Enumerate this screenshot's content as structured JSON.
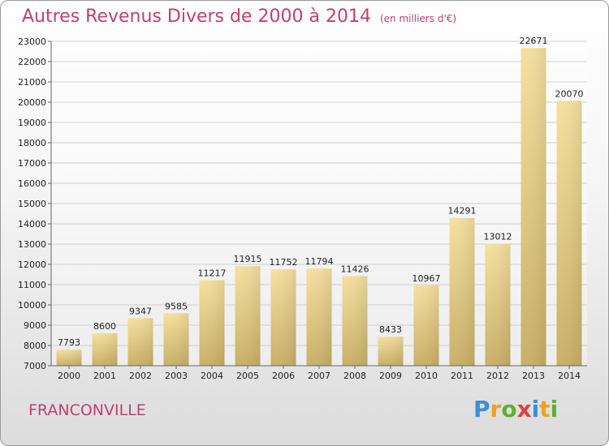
{
  "title": "Autres Revenus Divers de 2000 à 2014",
  "subtitle": "(en milliers d'€)",
  "location": "FRANCONVILLE",
  "logo": {
    "text": "Proxiti",
    "letters": [
      {
        "ch": "P",
        "color": "#3a8fd6"
      },
      {
        "ch": "r",
        "color": "#f0a020"
      },
      {
        "ch": "o",
        "color": "#60b030"
      },
      {
        "ch": "x",
        "color": "#e04040"
      },
      {
        "ch": "i",
        "color": "#3a8fd6"
      },
      {
        "ch": "t",
        "color": "#f0a020"
      },
      {
        "ch": "i",
        "color": "#60b030"
      }
    ]
  },
  "colors": {
    "title": "#c14070",
    "bar_light": "#f5e0a0",
    "bar_dark": "#c8b068",
    "grid": "#cccccc"
  },
  "chart_data": {
    "type": "bar",
    "categories": [
      "2000",
      "2001",
      "2002",
      "2003",
      "2004",
      "2005",
      "2006",
      "2007",
      "2008",
      "2009",
      "2010",
      "2011",
      "2012",
      "2013",
      "2014"
    ],
    "values": [
      7793,
      8600,
      9347,
      9585,
      11217,
      11915,
      11752,
      11794,
      11426,
      8433,
      10967,
      14291,
      13012,
      22671,
      20070
    ],
    "ylim": [
      7000,
      23000
    ],
    "yticks": [
      7000,
      8000,
      9000,
      10000,
      11000,
      12000,
      13000,
      14000,
      15000,
      16000,
      17000,
      18000,
      19000,
      20000,
      21000,
      22000,
      23000
    ],
    "grid": true,
    "xlabel": "",
    "ylabel": ""
  }
}
